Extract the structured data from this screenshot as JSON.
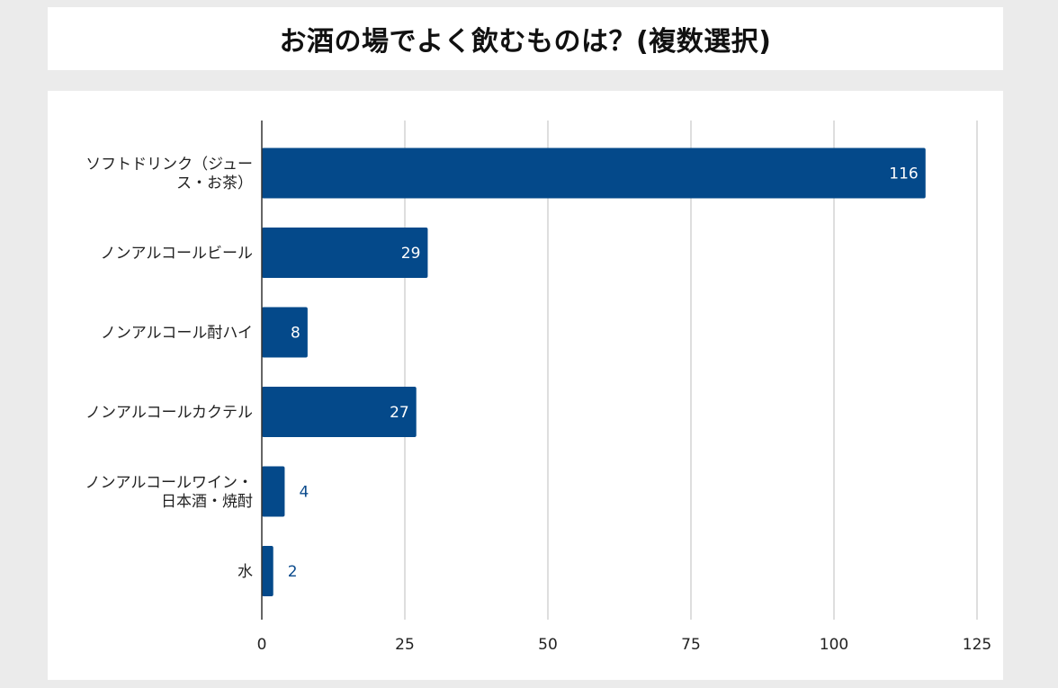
{
  "title": "お酒の場でよく飲むものは？(複数選択)",
  "chart_data": {
    "type": "bar",
    "orientation": "horizontal",
    "title": "お酒の場でよく飲むものは？(複数選択)",
    "categories": [
      [
        "ソフトドリンク（ジュー",
        "ス・お茶）"
      ],
      [
        "ノンアルコールビール"
      ],
      [
        "ノンアルコール酎ハイ"
      ],
      [
        "ノンアルコールカクテル"
      ],
      [
        "ノンアルコールワイン・",
        "日本酒・焼酎"
      ],
      [
        "水"
      ]
    ],
    "values": [
      116,
      29,
      8,
      27,
      4,
      2
    ],
    "xlim": [
      0,
      125
    ],
    "xticks": [
      0,
      25,
      50,
      75,
      100,
      125
    ],
    "grid": true,
    "bar_color": "#04498a",
    "label_inside_color": "#ffffff",
    "label_outside_color": "#0a4a8c",
    "xlabel": "",
    "ylabel": ""
  }
}
